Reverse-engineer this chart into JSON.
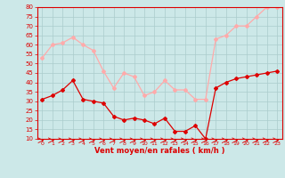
{
  "hours": [
    0,
    1,
    2,
    3,
    4,
    5,
    6,
    7,
    8,
    9,
    10,
    11,
    12,
    13,
    14,
    15,
    16,
    17,
    18,
    19,
    20,
    21,
    22,
    23
  ],
  "wind_avg": [
    31,
    33,
    36,
    41,
    31,
    30,
    29,
    22,
    20,
    21,
    20,
    18,
    21,
    14,
    14,
    17,
    10,
    37,
    40,
    42,
    43,
    44,
    45,
    46
  ],
  "wind_gust": [
    53,
    60,
    61,
    64,
    60,
    57,
    46,
    37,
    45,
    43,
    33,
    35,
    41,
    36,
    36,
    31,
    31,
    63,
    65,
    70,
    70,
    75,
    80,
    80
  ],
  "bg_color": "#cce8e8",
  "grid_color": "#aacccc",
  "avg_color": "#dd0000",
  "gust_color": "#ffaaaa",
  "axis_color": "#dd0000",
  "xlabel": "Vent moyen/en rafales ( km/h )",
  "xlabel_color": "#dd0000",
  "tick_color": "#dd0000",
  "ylim": [
    10,
    80
  ],
  "yticks": [
    10,
    15,
    20,
    25,
    30,
    35,
    40,
    45,
    50,
    55,
    60,
    65,
    70,
    75,
    80
  ],
  "marker": "D",
  "marker_size": 2.0,
  "linewidth": 0.9
}
